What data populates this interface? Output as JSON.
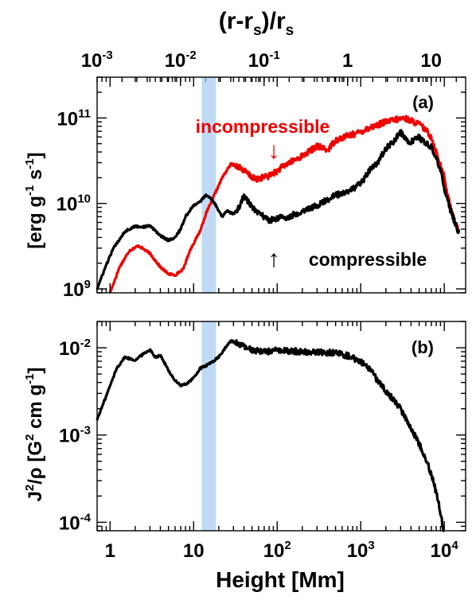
{
  "figure": {
    "top_axis": {
      "label_main": "(r-r",
      "label_sub1": "s",
      "label_mid": ")/r",
      "label_sub2": "s",
      "ticks": [
        {
          "value": 0.001,
          "base": "10",
          "exp": "-3"
        },
        {
          "value": 0.01,
          "base": "10",
          "exp": "-2"
        },
        {
          "value": 0.1,
          "base": "10",
          "exp": "-1"
        },
        {
          "value": 1,
          "base": "1",
          "exp": ""
        },
        {
          "value": 10,
          "base": "10",
          "exp": ""
        }
      ]
    },
    "colors": {
      "red": "#ee0000",
      "black": "#000000",
      "band": "#a9cdf2"
    }
  },
  "chart_data": [
    {
      "type": "line",
      "panel_label": "(a)",
      "x_scale": "log",
      "y_scale": "log",
      "xlim": [
        0.7,
        18000
      ],
      "ylim": [
        900000000,
        300000000000
      ],
      "ylabel_parts": {
        "a": "[erg g",
        "a_sup": "-1",
        "b": " s",
        "b_sup": "-1",
        "c": "]"
      },
      "yticks": [
        {
          "value": 1000000000,
          "base": "10",
          "exp": "9"
        },
        {
          "value": 10000000000,
          "base": "10",
          "exp": "10"
        },
        {
          "value": 100000000000,
          "base": "10",
          "exp": "11"
        }
      ],
      "shaded_band": {
        "x": [
          12.5,
          18.5
        ]
      },
      "annotations": {
        "incompressible": "incompressible",
        "incompressible_arrow": "↓",
        "compressible": "compressible",
        "compressible_arrow": "↑"
      },
      "series": [
        {
          "name": "incompressible",
          "color": "#ee0000",
          "x": [
            1.0,
            1.3,
            1.7,
            2.2,
            3.0,
            4.0,
            5.0,
            6.0,
            7.5,
            9.0,
            12,
            14,
            18,
            22,
            28,
            35,
            45,
            55,
            65,
            80,
            100,
            130,
            170,
            220,
            300,
            400,
            500,
            700,
            900,
            1200,
            1600,
            2000,
            2600,
            3300,
            4000,
            5000,
            6000,
            7000,
            8000,
            9000,
            10000,
            11000,
            13000,
            15000
          ],
          "y": [
            900000000,
            1800000000,
            2800000000,
            3200000000,
            2600000000,
            1800000000,
            1500000000,
            1450000000,
            1700000000,
            2800000000,
            4800000000,
            7500000000,
            13000000000,
            20000000000,
            29000000000,
            27000000000,
            22000000000,
            19000000000,
            20000000000,
            21000000000,
            24000000000,
            29000000000,
            33000000000,
            38000000000,
            47000000000,
            42000000000,
            55000000000,
            62000000000,
            66000000000,
            75000000000,
            83000000000,
            90000000000,
            95000000000,
            100000000000,
            93000000000,
            85000000000,
            72000000000,
            60000000000,
            40000000000,
            28000000000,
            20000000000,
            12000000000,
            7000000000,
            4500000000
          ]
        },
        {
          "name": "compressible",
          "color": "#000000",
          "x": [
            0.7,
            0.9,
            1.1,
            1.5,
            2.0,
            2.5,
            3.0,
            4.0,
            5.0,
            6.0,
            7.0,
            8.0,
            10,
            12,
            14,
            16,
            18,
            20,
            22,
            25,
            30,
            35,
            40,
            45,
            55,
            65,
            80,
            100,
            130,
            170,
            220,
            300,
            400,
            500,
            700,
            1000,
            1300,
            1600,
            2000,
            2500,
            3000,
            3500,
            4000,
            5000,
            6000,
            7000,
            8000,
            9000,
            10000,
            12000,
            15000
          ],
          "y": [
            1000000000,
            1900000000,
            3000000000,
            4700000000,
            5400000000,
            5300000000,
            5500000000,
            4200000000,
            3700000000,
            4000000000,
            5000000000,
            7000000000,
            9500000000,
            10500000000,
            12500000000,
            11500000000,
            10000000000,
            8200000000,
            7000000000,
            8200000000,
            7500000000,
            9000000000,
            12200000000,
            10500000000,
            8000000000,
            7400000000,
            6300000000,
            6800000000,
            6800000000,
            7600000000,
            8500000000,
            9500000000,
            11000000000,
            12500000000,
            13500000000,
            17000000000,
            25000000000,
            30000000000,
            44000000000,
            54000000000,
            68000000000,
            56000000000,
            52000000000,
            60000000000,
            50000000000,
            45000000000,
            35000000000,
            24000000000,
            15000000000,
            8000000000,
            4500000000
          ]
        }
      ]
    },
    {
      "type": "line",
      "panel_label": "(b)",
      "x_scale": "log",
      "y_scale": "log",
      "xlim": [
        0.7,
        18000
      ],
      "ylim": [
        8e-05,
        0.02
      ],
      "ylabel_parts": {
        "a": "J",
        "a_sup": "2",
        "b": "/ρ [G",
        "b_sup": "2",
        "c": " cm g",
        "c_sup": "-1",
        "d": "]"
      },
      "xlabel": "Height [Mm]",
      "xticks": [
        {
          "value": 1,
          "base": "1",
          "exp": ""
        },
        {
          "value": 10,
          "base": "10",
          "exp": ""
        },
        {
          "value": 100,
          "base": "10",
          "exp": "2"
        },
        {
          "value": 1000,
          "base": "10",
          "exp": "3"
        },
        {
          "value": 10000,
          "base": "10",
          "exp": "4"
        }
      ],
      "yticks": [
        {
          "value": 0.0001,
          "base": "10",
          "exp": "-4"
        },
        {
          "value": 0.001,
          "base": "10",
          "exp": "-3"
        },
        {
          "value": 0.01,
          "base": "10",
          "exp": "-2"
        }
      ],
      "shaded_band": {
        "x": [
          12.5,
          18.5
        ]
      },
      "series": [
        {
          "name": "J2/rho",
          "color": "#000000",
          "x": [
            0.7,
            0.9,
            1.2,
            1.5,
            2.0,
            2.5,
            3.0,
            3.5,
            4.0,
            5.0,
            6.0,
            7.0,
            8.0,
            10,
            12,
            14,
            16,
            20,
            24,
            28,
            35,
            45,
            60,
            80,
            100,
            150,
            200,
            300,
            500,
            700,
            1000,
            1300,
            1600,
            2000,
            2500,
            3000,
            4000,
            5000,
            6000,
            7000,
            8000,
            9000,
            10000
          ],
          "y": [
            0.0015,
            0.0028,
            0.0058,
            0.0078,
            0.0072,
            0.0085,
            0.0095,
            0.0078,
            0.0082,
            0.0055,
            0.0042,
            0.0037,
            0.0038,
            0.0045,
            0.0058,
            0.0062,
            0.0067,
            0.0078,
            0.01,
            0.012,
            0.011,
            0.0097,
            0.0092,
            0.0091,
            0.0093,
            0.0092,
            0.009,
            0.0089,
            0.0088,
            0.0081,
            0.007,
            0.0055,
            0.0042,
            0.0032,
            0.0025,
            0.002,
            0.0012,
            0.0008,
            0.00055,
            0.00035,
            0.00022,
            0.00013,
            7e-05
          ]
        }
      ]
    }
  ]
}
